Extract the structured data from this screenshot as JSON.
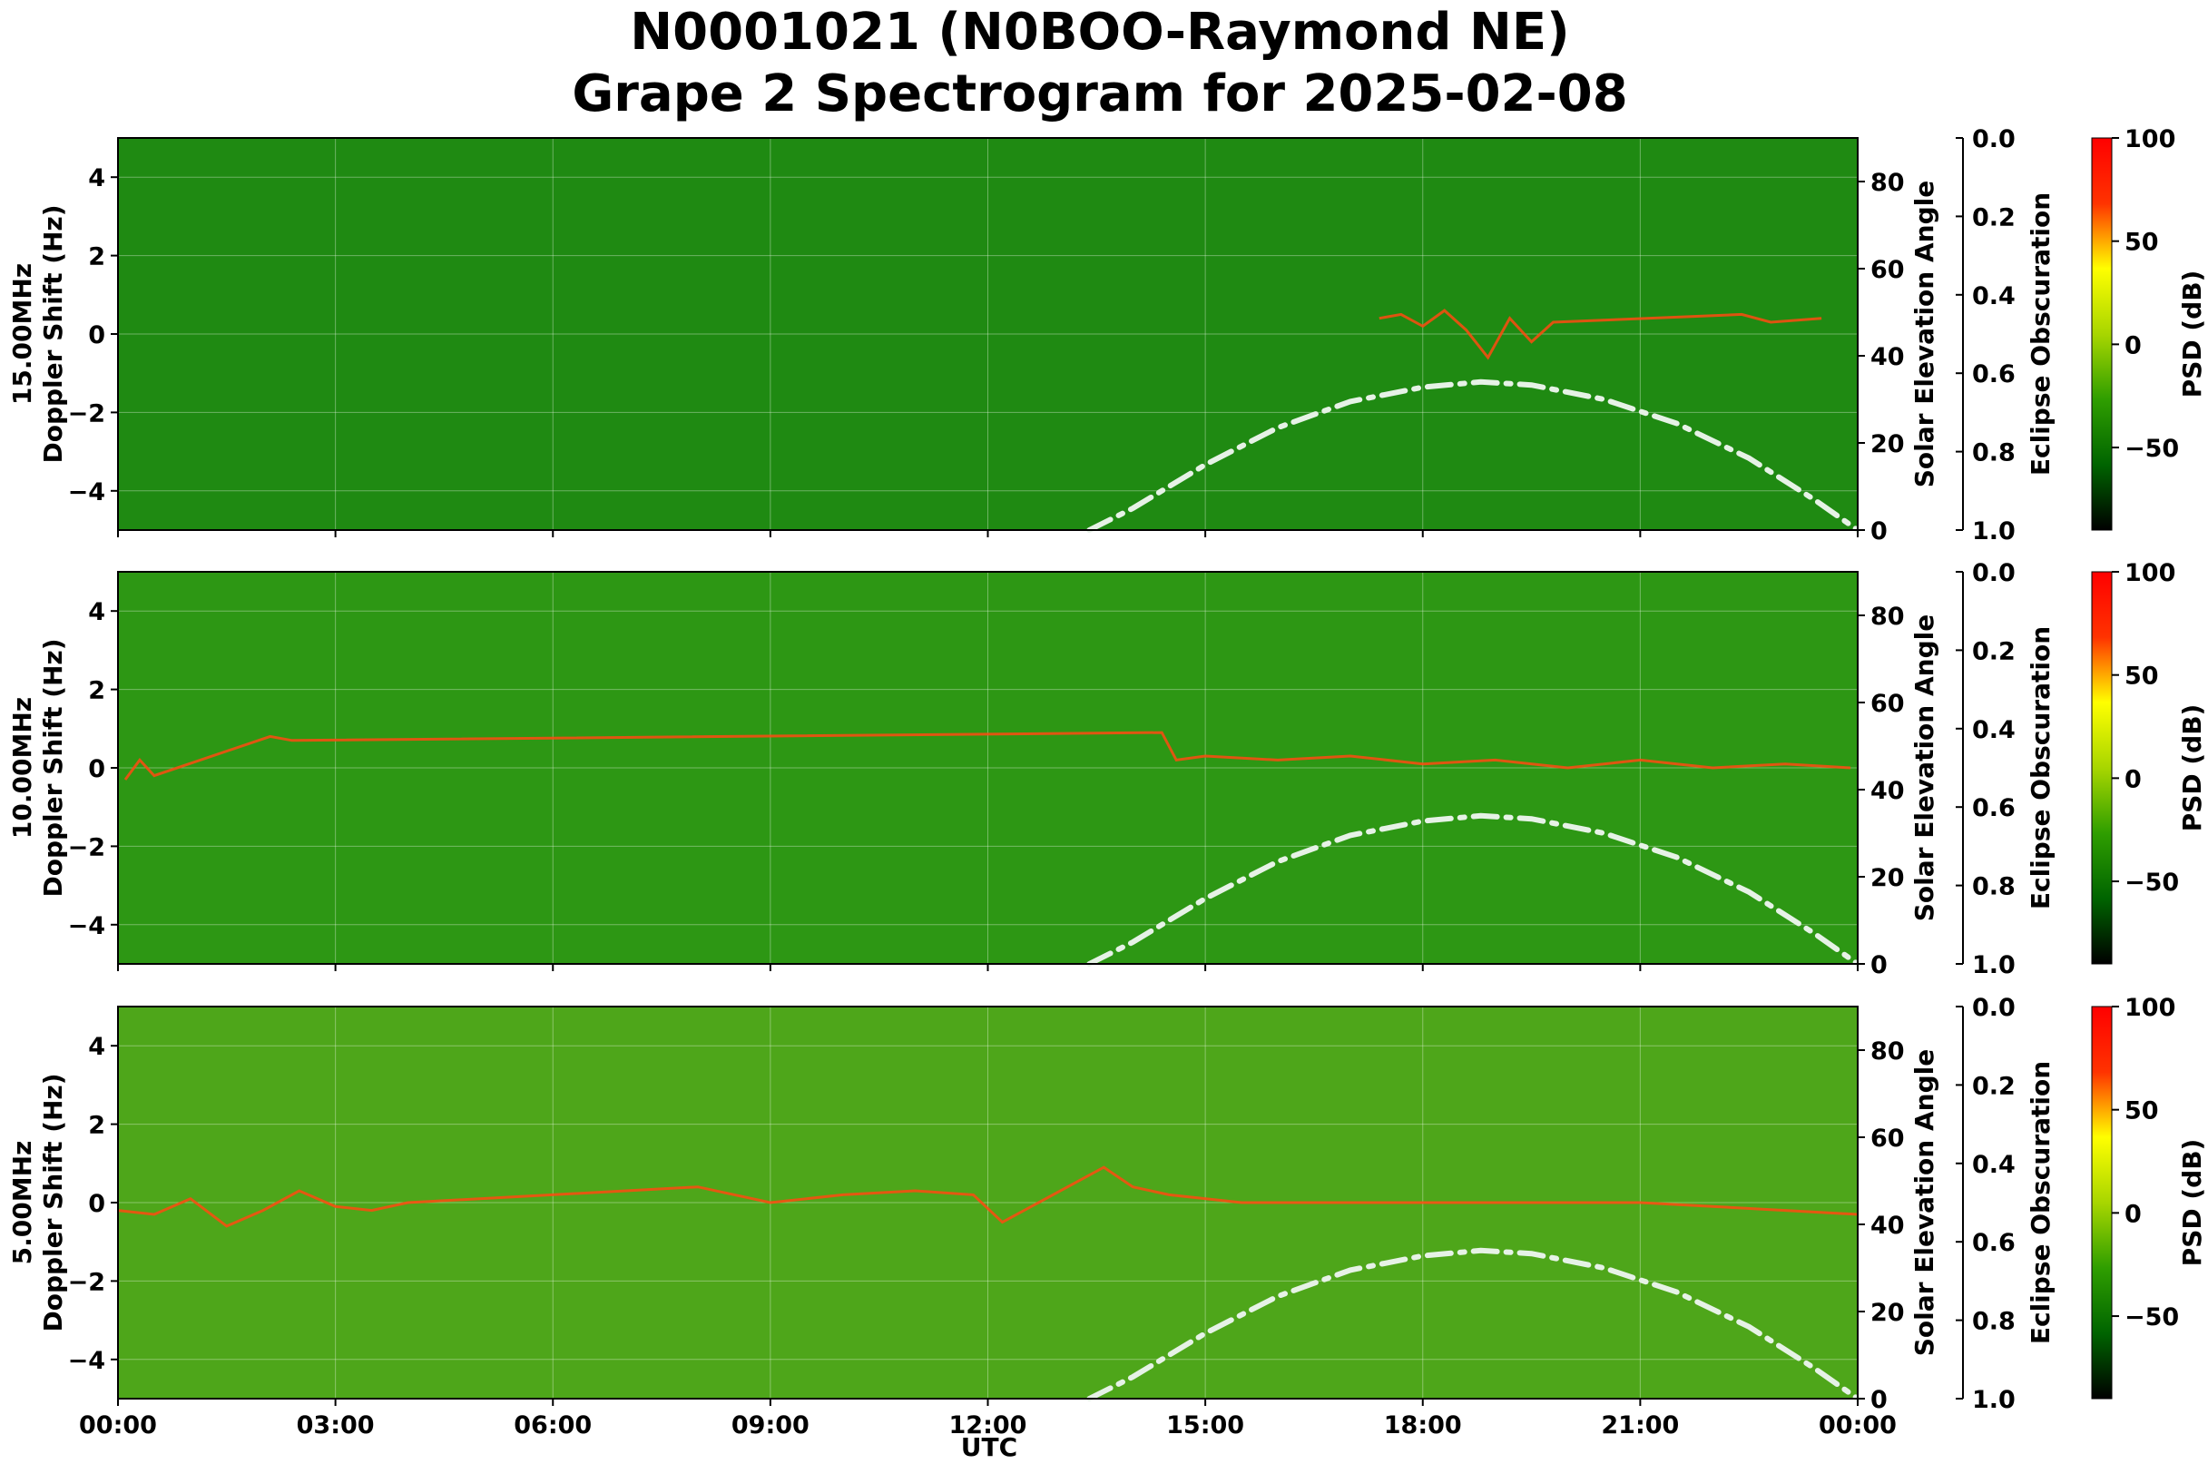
{
  "chart_data": {
    "type": "heatmap",
    "title_line1": "N0001021 (N0BOO-Raymond NE)",
    "title_line2": "Grape 2 Spectrogram for 2025-02-08",
    "xlabel": "UTC",
    "x_ticks": [
      "00:00",
      "03:00",
      "06:00",
      "09:00",
      "12:00",
      "15:00",
      "18:00",
      "21:00",
      "00:00"
    ],
    "x_range_hours": [
      0,
      24
    ],
    "y_ticks": [
      4,
      2,
      0,
      -2,
      -4
    ],
    "y_range_hz": [
      -5,
      5
    ],
    "right_axis": {
      "label": "Solar Elevation Angle",
      "ticks": [
        80,
        60,
        40,
        20,
        0
      ],
      "range": [
        0,
        90
      ]
    },
    "obscuration_axis": {
      "label": "Eclipse Obscuration",
      "ticks": [
        "0.0",
        "0.2",
        "0.4",
        "0.6",
        "0.8",
        "1.0"
      ],
      "range": [
        0,
        1
      ]
    },
    "colorbar": {
      "label": "PSD (dB)",
      "ticks": [
        100,
        50,
        0,
        -50
      ],
      "range": [
        -90,
        100
      ],
      "colors": [
        "#000000",
        "#006400",
        "#2f9e00",
        "#a8d600",
        "#ffff00",
        "#ff3300",
        "#ff0000"
      ]
    },
    "grid": true,
    "solar_elevation_curve": {
      "hours": [
        13.4,
        14,
        15,
        16,
        17,
        18,
        18.8,
        19.5,
        20.5,
        21.5,
        22.5,
        23.4,
        24
      ],
      "degrees": [
        0,
        5,
        15,
        23.5,
        29.5,
        32.8,
        34,
        33.3,
        30,
        24.5,
        16.5,
        7,
        0
      ],
      "color": "#e6f2e6",
      "style": "dash-dot"
    },
    "panels": [
      {
        "ylabel_top": "15.00MHz",
        "ylabel_bottom": "Doppler Shift (Hz)",
        "background": "#1f8a12",
        "trace_hours": [
          17.4,
          17.7,
          18.0,
          18.3,
          18.6,
          18.9,
          19.2,
          19.5,
          19.8,
          22.4,
          22.8,
          23.5
        ],
        "trace_doppler": [
          0.4,
          0.5,
          0.2,
          0.6,
          0.1,
          -0.6,
          0.4,
          -0.2,
          0.3,
          0.5,
          0.3,
          0.4
        ]
      },
      {
        "ylabel_top": "10.00MHz",
        "ylabel_bottom": "Doppler Shift (Hz)",
        "background": "#2d9714",
        "trace_hours": [
          0.1,
          0.3,
          0.5,
          2.1,
          2.4,
          14.4,
          14.6,
          15.0,
          16.0,
          17.0,
          18.0,
          19.0,
          20.0,
          21.0,
          22.0,
          23.0,
          23.9
        ],
        "trace_doppler": [
          -0.3,
          0.2,
          -0.2,
          0.8,
          0.7,
          0.9,
          0.2,
          0.3,
          0.2,
          0.3,
          0.1,
          0.2,
          0.0,
          0.2,
          0.0,
          0.1,
          0.0
        ]
      },
      {
        "ylabel_top": "5.00MHz",
        "ylabel_bottom": "Doppler Shift (Hz)",
        "background": "#4ea61a",
        "trace_hours": [
          0.0,
          0.5,
          1.0,
          1.5,
          2.0,
          2.5,
          3.0,
          3.5,
          4.0,
          8.0,
          9.0,
          10.0,
          11.0,
          11.8,
          12.2,
          13.6,
          14.0,
          14.5,
          15.5,
          17.0,
          19.0,
          21.0,
          23.0,
          24.0
        ],
        "trace_doppler": [
          -0.2,
          -0.3,
          0.1,
          -0.6,
          -0.2,
          0.3,
          -0.1,
          -0.2,
          0.0,
          0.4,
          0.0,
          0.2,
          0.3,
          0.2,
          -0.5,
          0.9,
          0.4,
          0.2,
          0.0,
          0.0,
          0.0,
          0.0,
          -0.2,
          -0.3
        ]
      }
    ]
  }
}
